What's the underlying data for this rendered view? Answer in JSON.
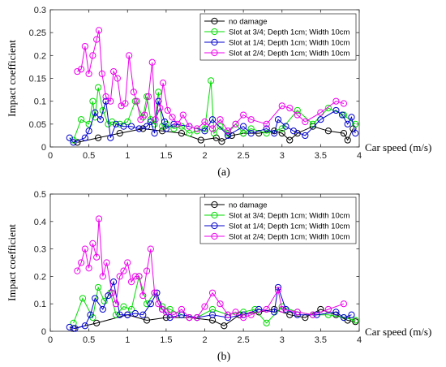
{
  "chart_data": [
    {
      "panel_label": "(a)",
      "type": "line",
      "xlabel": "Car speed (m/s)",
      "ylabel": "Impact coefficient",
      "xlim": [
        0,
        4
      ],
      "ylim": [
        0,
        0.3
      ],
      "xticks": [
        "0",
        "0.5",
        "1",
        "1.5",
        "2",
        "2.5",
        "3",
        "3.5",
        "4"
      ],
      "yticks": [
        "0",
        "0.05",
        "0.1",
        "0.15",
        "0.2",
        "0.25",
        "0.3"
      ],
      "grid": false,
      "legend_position": "top-right",
      "series": [
        {
          "name": "no damage",
          "color": "#000000",
          "x": [
            0.35,
            0.62,
            0.9,
            1.2,
            1.45,
            1.7,
            1.95,
            2.15,
            2.22,
            2.35,
            2.5,
            2.7,
            2.9,
            3.0,
            3.1,
            3.2,
            3.4,
            3.6,
            3.8,
            3.85,
            3.92
          ],
          "y": [
            0.01,
            0.02,
            0.03,
            0.04,
            0.035,
            0.03,
            0.015,
            0.02,
            0.012,
            0.025,
            0.03,
            0.03,
            0.035,
            0.03,
            0.015,
            0.03,
            0.045,
            0.035,
            0.03,
            0.015,
            0.04
          ]
        },
        {
          "name": "Slot at 3/4; Depth 1cm; Width 10cm",
          "color": "#00dd00",
          "x": [
            0.3,
            0.4,
            0.5,
            0.55,
            0.58,
            0.62,
            0.68,
            0.75,
            0.8,
            0.9,
            1.0,
            1.1,
            1.2,
            1.25,
            1.3,
            1.35,
            1.4,
            1.45,
            1.5,
            1.6,
            1.7,
            1.8,
            1.9,
            2.0,
            2.08,
            2.12,
            2.2,
            2.3,
            2.4,
            2.5,
            2.6,
            2.8,
            3.0,
            3.2,
            3.4,
            3.6,
            3.8,
            3.95
          ],
          "y": [
            0.015,
            0.06,
            0.05,
            0.1,
            0.065,
            0.13,
            0.08,
            0.05,
            0.055,
            0.05,
            0.055,
            0.1,
            0.065,
            0.11,
            0.06,
            0.05,
            0.12,
            0.045,
            0.05,
            0.04,
            0.045,
            0.03,
            0.035,
            0.04,
            0.145,
            0.03,
            0.045,
            0.03,
            0.05,
            0.03,
            0.04,
            0.03,
            0.04,
            0.08,
            0.05,
            0.085,
            0.07,
            0.05
          ]
        },
        {
          "name": "Slot at 1/4; Depth 1cm; Width 10cm",
          "color": "#0000cc",
          "x": [
            0.25,
            0.3,
            0.45,
            0.5,
            0.58,
            0.65,
            0.72,
            0.78,
            0.85,
            0.95,
            1.05,
            1.15,
            1.25,
            1.3,
            1.35,
            1.4,
            1.48,
            1.5,
            1.6,
            1.8,
            2.0,
            2.1,
            2.3,
            2.5,
            2.6,
            2.8,
            2.9,
            2.95,
            3.05,
            3.15,
            3.3,
            3.5,
            3.7,
            3.78,
            3.85,
            3.9,
            3.95
          ],
          "y": [
            0.02,
            0.01,
            0.02,
            0.035,
            0.075,
            0.06,
            0.1,
            0.02,
            0.05,
            0.045,
            0.045,
            0.04,
            0.045,
            0.055,
            0.03,
            0.1,
            0.055,
            0.04,
            0.05,
            0.045,
            0.035,
            0.06,
            0.025,
            0.045,
            0.03,
            0.04,
            0.03,
            0.06,
            0.045,
            0.035,
            0.025,
            0.06,
            0.08,
            0.07,
            0.05,
            0.065,
            0.03
          ]
        },
        {
          "name": "Slot at 2/4; Depth 1cm; Width 10cm",
          "color": "#ee00ee",
          "x": [
            0.35,
            0.4,
            0.45,
            0.5,
            0.55,
            0.6,
            0.63,
            0.67,
            0.72,
            0.78,
            0.82,
            0.87,
            0.92,
            0.97,
            1.02,
            1.08,
            1.12,
            1.17,
            1.22,
            1.27,
            1.32,
            1.36,
            1.42,
            1.46,
            1.52,
            1.58,
            1.65,
            1.72,
            1.8,
            1.9,
            2.0,
            2.1,
            2.2,
            2.3,
            2.4,
            2.5,
            2.6,
            2.8,
            3.0,
            3.1,
            3.2,
            3.3,
            3.5,
            3.7,
            3.8
          ],
          "y": [
            0.165,
            0.17,
            0.22,
            0.16,
            0.2,
            0.235,
            0.255,
            0.16,
            0.11,
            0.1,
            0.165,
            0.15,
            0.09,
            0.095,
            0.2,
            0.12,
            0.1,
            0.06,
            0.07,
            0.11,
            0.185,
            0.06,
            0.085,
            0.14,
            0.08,
            0.065,
            0.05,
            0.07,
            0.045,
            0.04,
            0.055,
            0.04,
            0.06,
            0.035,
            0.05,
            0.07,
            0.06,
            0.05,
            0.09,
            0.085,
            0.07,
            0.055,
            0.075,
            0.1,
            0.095
          ]
        }
      ]
    },
    {
      "panel_label": "(b)",
      "type": "line",
      "xlabel": "Car speed (m/s)",
      "ylabel": "Impact coefficient",
      "xlim": [
        0,
        4
      ],
      "ylim": [
        0,
        0.5
      ],
      "xticks": [
        "0",
        "0.5",
        "1",
        "1.5",
        "2",
        "2.5",
        "3",
        "3.5",
        "4"
      ],
      "yticks": [
        "0",
        "0.1",
        "0.2",
        "0.3",
        "0.4",
        "0.5"
      ],
      "grid": false,
      "legend_position": "top-right",
      "series": [
        {
          "name": "no damage",
          "color": "#000000",
          "x": [
            0.3,
            0.6,
            1.0,
            1.25,
            1.5,
            1.8,
            2.1,
            2.25,
            2.45,
            2.7,
            2.9,
            3.1,
            3.3,
            3.5,
            3.7,
            3.85,
            3.95
          ],
          "y": [
            0.01,
            0.03,
            0.06,
            0.04,
            0.05,
            0.05,
            0.04,
            0.02,
            0.06,
            0.07,
            0.08,
            0.06,
            0.05,
            0.08,
            0.06,
            0.04,
            0.035
          ]
        },
        {
          "name": "Slot at 3/4; Depth 1cm; Width 10cm",
          "color": "#00dd00",
          "x": [
            0.3,
            0.42,
            0.55,
            0.62,
            0.7,
            0.78,
            0.85,
            0.95,
            1.05,
            1.15,
            1.25,
            1.35,
            1.45,
            1.55,
            1.7,
            1.9,
            2.1,
            2.3,
            2.5,
            2.65,
            2.8,
            3.0,
            3.2,
            3.4,
            3.6,
            3.8,
            3.95
          ],
          "y": [
            0.03,
            0.12,
            0.05,
            0.16,
            0.11,
            0.14,
            0.06,
            0.09,
            0.08,
            0.2,
            0.1,
            0.14,
            0.09,
            0.08,
            0.06,
            0.05,
            0.08,
            0.06,
            0.07,
            0.08,
            0.03,
            0.09,
            0.07,
            0.06,
            0.06,
            0.05,
            0.04
          ]
        },
        {
          "name": "Slot at 1/4; Depth 1cm; Width 10cm",
          "color": "#0000cc",
          "x": [
            0.25,
            0.32,
            0.45,
            0.52,
            0.58,
            0.68,
            0.75,
            0.82,
            0.9,
            1.0,
            1.1,
            1.2,
            1.3,
            1.38,
            1.45,
            1.55,
            1.7,
            1.9,
            2.1,
            2.3,
            2.5,
            2.7,
            2.9,
            2.95,
            3.05,
            3.2,
            3.45,
            3.7,
            3.8,
            3.9
          ],
          "y": [
            0.015,
            0.01,
            0.02,
            0.06,
            0.12,
            0.08,
            0.13,
            0.18,
            0.06,
            0.06,
            0.065,
            0.06,
            0.1,
            0.14,
            0.08,
            0.05,
            0.06,
            0.05,
            0.06,
            0.05,
            0.06,
            0.08,
            0.07,
            0.16,
            0.08,
            0.06,
            0.06,
            0.07,
            0.05,
            0.06
          ]
        },
        {
          "name": "Slot at 2/4; Depth 1cm; Width 10cm",
          "color": "#ee00ee",
          "x": [
            0.35,
            0.4,
            0.45,
            0.5,
            0.55,
            0.6,
            0.63,
            0.68,
            0.73,
            0.8,
            0.85,
            0.9,
            0.95,
            1.0,
            1.05,
            1.1,
            1.15,
            1.2,
            1.25,
            1.3,
            1.35,
            1.4,
            1.45,
            1.5,
            1.6,
            1.7,
            1.8,
            1.9,
            2.0,
            2.1,
            2.2,
            2.3,
            2.4,
            2.5,
            2.6,
            2.8,
            2.95,
            3.0,
            3.2,
            3.4,
            3.6,
            3.8
          ],
          "y": [
            0.22,
            0.25,
            0.3,
            0.23,
            0.32,
            0.27,
            0.41,
            0.2,
            0.25,
            0.14,
            0.1,
            0.2,
            0.22,
            0.25,
            0.18,
            0.2,
            0.2,
            0.13,
            0.22,
            0.3,
            0.14,
            0.1,
            0.08,
            0.07,
            0.06,
            0.08,
            0.05,
            0.05,
            0.09,
            0.14,
            0.1,
            0.06,
            0.07,
            0.05,
            0.06,
            0.08,
            0.15,
            0.08,
            0.07,
            0.06,
            0.08,
            0.1
          ]
        }
      ]
    }
  ]
}
